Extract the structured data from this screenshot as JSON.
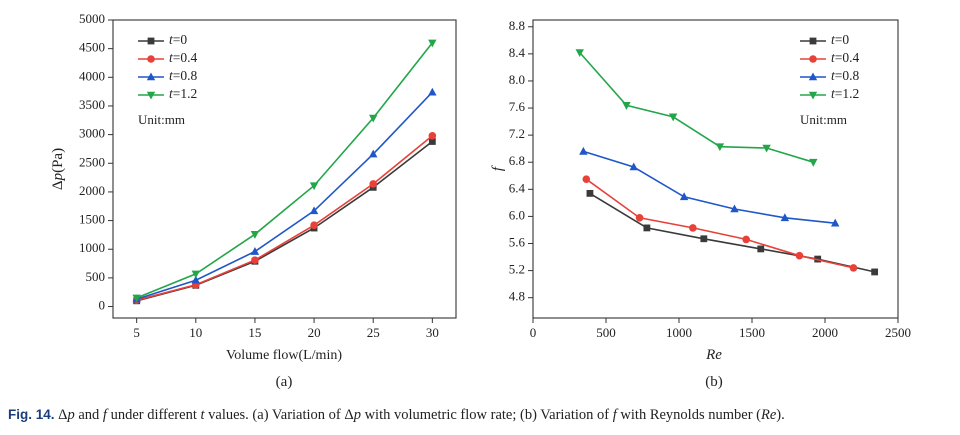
{
  "caption": {
    "fig_no": "Fig. 14.",
    "text": "Δp and f under different t values. (a) Variation of Δp with volumetric flow rate; (b) Variation of f with Reynolds number (Re)."
  },
  "chart_data": [
    {
      "type": "line",
      "panel_label": "(a)",
      "title": "",
      "xlabel": "Volume flow(L/min)",
      "ylabel": "Δp(Pa)",
      "xlim": [
        3,
        32
      ],
      "ylim": [
        -200,
        5000
      ],
      "xticks": [
        5,
        10,
        15,
        20,
        25,
        30
      ],
      "yticks": [
        0,
        500,
        1000,
        1500,
        2000,
        2500,
        3000,
        3500,
        4000,
        4500,
        5000
      ],
      "legend_position": "top-left",
      "note": "Unit:mm",
      "series": [
        {
          "name": "t=0",
          "marker": "square",
          "color": "#3a3a3a",
          "x": [
            5,
            10,
            15,
            20,
            25,
            30
          ],
          "values": [
            100,
            370,
            790,
            1370,
            2080,
            2880
          ]
        },
        {
          "name": "t=0.4",
          "marker": "circle",
          "color": "#e8413a",
          "x": [
            5,
            10,
            15,
            20,
            25,
            30
          ],
          "values": [
            110,
            380,
            810,
            1420,
            2140,
            2980
          ]
        },
        {
          "name": "t=0.8",
          "marker": "triangle-up",
          "color": "#1f57c8",
          "x": [
            5,
            10,
            15,
            20,
            25,
            30
          ],
          "values": [
            130,
            460,
            960,
            1670,
            2660,
            3740
          ]
        },
        {
          "name": "t=1.2",
          "marker": "triangle-down",
          "color": "#23a64a",
          "x": [
            5,
            10,
            15,
            20,
            25,
            30
          ],
          "values": [
            150,
            570,
            1260,
            2110,
            3290,
            4600
          ]
        }
      ]
    },
    {
      "type": "line",
      "panel_label": "(b)",
      "title": "",
      "xlabel": "Re",
      "ylabel": "f",
      "xlim": [
        0,
        2500
      ],
      "ylim": [
        4.5,
        8.9
      ],
      "xticks": [
        0,
        500,
        1000,
        1500,
        2000,
        2500
      ],
      "yticks": [
        4.8,
        5.2,
        5.6,
        6.0,
        6.4,
        6.8,
        7.2,
        7.6,
        8.0,
        8.4,
        8.8
      ],
      "legend_position": "top-right",
      "note": "Unit:mm",
      "series": [
        {
          "name": "t=0",
          "marker": "square",
          "color": "#3a3a3a",
          "x": [
            390,
            780,
            1170,
            1560,
            1950,
            2340
          ],
          "values": [
            6.34,
            5.83,
            5.67,
            5.52,
            5.37,
            5.18
          ]
        },
        {
          "name": "t=0.4",
          "marker": "circle",
          "color": "#e8413a",
          "x": [
            365,
            730,
            1095,
            1460,
            1825,
            2195
          ],
          "values": [
            6.55,
            5.98,
            5.83,
            5.66,
            5.42,
            5.24
          ]
        },
        {
          "name": "t=0.8",
          "marker": "triangle-up",
          "color": "#1f57c8",
          "x": [
            345,
            690,
            1035,
            1380,
            1725,
            2070
          ],
          "values": [
            6.96,
            6.73,
            6.29,
            6.11,
            5.98,
            5.9
          ]
        },
        {
          "name": "t=1.2",
          "marker": "triangle-down",
          "color": "#23a64a",
          "x": [
            320,
            640,
            960,
            1280,
            1600,
            1920
          ],
          "values": [
            8.42,
            7.64,
            7.47,
            7.03,
            7.01,
            6.8
          ]
        }
      ]
    }
  ]
}
